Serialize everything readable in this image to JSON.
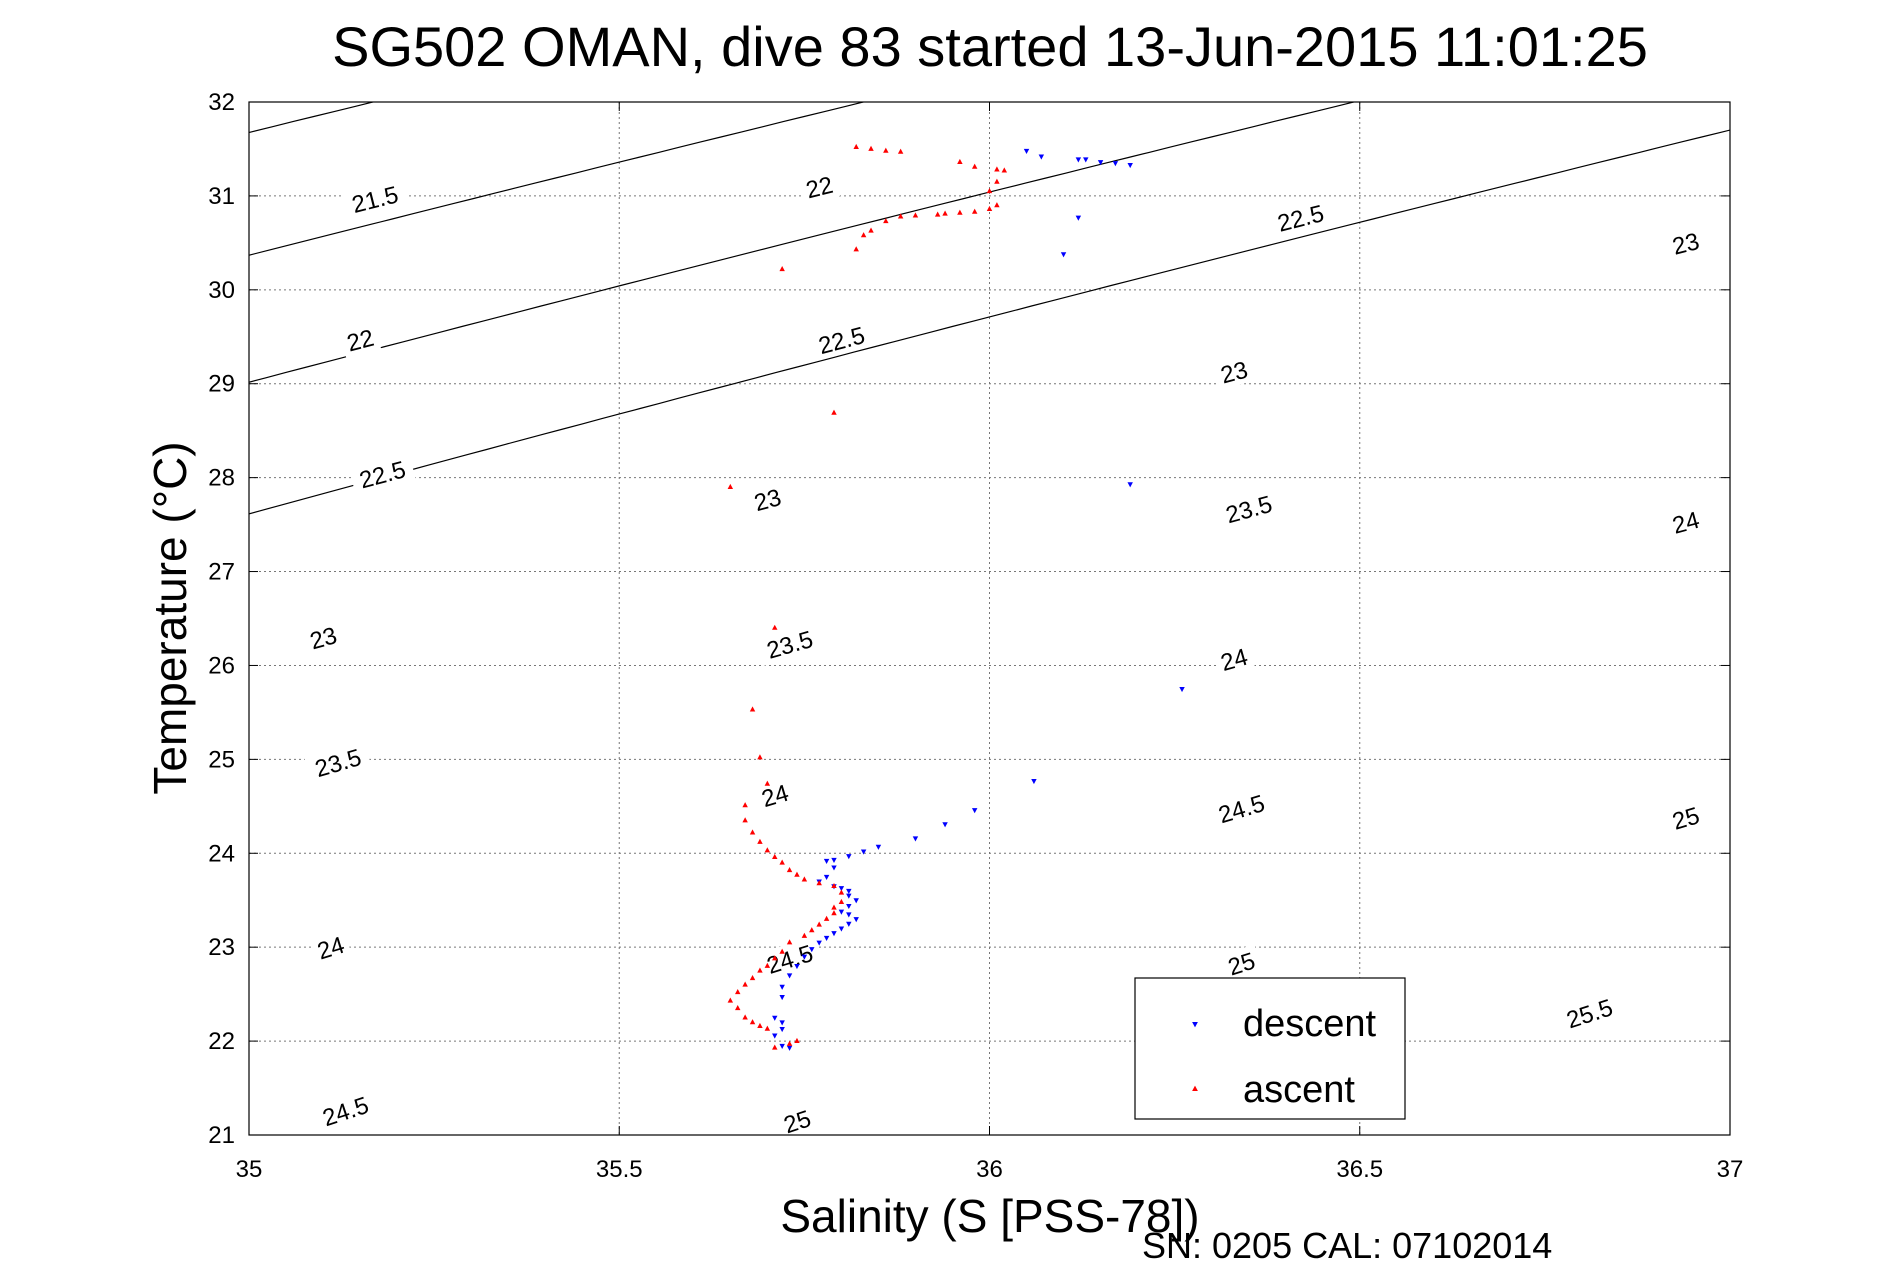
{
  "chart_data": {
    "type": "scatter",
    "title": "SG502 OMAN, dive 83 started 13-Jun-2015 11:01:25",
    "xlabel": "Salinity (S [PSS-78])",
    "ylabel": "Temperature (°C)",
    "footer": "SN: 0205  CAL: 07102014",
    "xlim": [
      35,
      37
    ],
    "ylim": [
      21,
      32
    ],
    "xticks": [
      35,
      35.5,
      36,
      36.5,
      37
    ],
    "xtick_labels": [
      "35",
      "35.5",
      "36",
      "36.5",
      "37"
    ],
    "yticks": [
      21,
      22,
      23,
      24,
      25,
      26,
      27,
      28,
      29,
      30,
      31,
      32
    ],
    "ytick_labels": [
      "21",
      "22",
      "23",
      "24",
      "25",
      "26",
      "27",
      "28",
      "29",
      "30",
      "31",
      "32"
    ],
    "grid": true,
    "legend_position": "bottom-right",
    "density_contours": {
      "levels": [
        21.5,
        22,
        22.5,
        23,
        23.5,
        24,
        24.5,
        25,
        25.5
      ],
      "labels": [
        {
          "text": "21.5",
          "s": 35.17,
          "t": 30.97
        },
        {
          "text": "22",
          "s": 35.77,
          "t": 31.1
        },
        {
          "text": "22.5",
          "s": 36.42,
          "t": 30.77
        },
        {
          "text": "23",
          "s": 36.94,
          "t": 30.5
        },
        {
          "text": "22",
          "s": 35.15,
          "t": 29.47
        },
        {
          "text": "22.5",
          "s": 35.8,
          "t": 29.47
        },
        {
          "text": "23",
          "s": 36.33,
          "t": 29.13
        },
        {
          "text": "22.5",
          "s": 35.18,
          "t": 28.04
        },
        {
          "text": "23",
          "s": 35.7,
          "t": 27.77
        },
        {
          "text": "23.5",
          "s": 36.35,
          "t": 27.67
        },
        {
          "text": "24",
          "s": 36.94,
          "t": 27.53
        },
        {
          "text": "23",
          "s": 35.1,
          "t": 26.3
        },
        {
          "text": "23.5",
          "s": 35.73,
          "t": 26.23
        },
        {
          "text": "24",
          "s": 36.33,
          "t": 26.07
        },
        {
          "text": "23.5",
          "s": 35.12,
          "t": 24.97
        },
        {
          "text": "24",
          "s": 35.71,
          "t": 24.62
        },
        {
          "text": "24.5",
          "s": 36.34,
          "t": 24.48
        },
        {
          "text": "25",
          "s": 36.94,
          "t": 24.38
        },
        {
          "text": "24",
          "s": 35.11,
          "t": 23.0
        },
        {
          "text": "24.5",
          "s": 35.73,
          "t": 22.88
        },
        {
          "text": "25",
          "s": 36.34,
          "t": 22.83
        },
        {
          "text": "25.5",
          "s": 36.81,
          "t": 22.3
        },
        {
          "text": "24.5",
          "s": 35.13,
          "t": 21.26
        },
        {
          "text": "25",
          "s": 35.74,
          "t": 21.15
        }
      ]
    },
    "series": [
      {
        "name": "descent",
        "color": "#0000ff",
        "marker": "triangle-down",
        "points": [
          [
            36.05,
            31.48
          ],
          [
            36.07,
            31.42
          ],
          [
            36.12,
            31.39
          ],
          [
            36.13,
            31.39
          ],
          [
            36.15,
            31.36
          ],
          [
            36.17,
            31.35
          ],
          [
            36.19,
            31.33
          ],
          [
            36.12,
            30.77
          ],
          [
            36.1,
            30.38
          ],
          [
            36.19,
            27.93
          ],
          [
            36.26,
            25.75
          ],
          [
            36.06,
            24.77
          ],
          [
            35.98,
            24.46
          ],
          [
            35.94,
            24.31
          ],
          [
            35.9,
            24.16
          ],
          [
            35.85,
            24.07
          ],
          [
            35.83,
            24.02
          ],
          [
            35.81,
            23.97
          ],
          [
            35.79,
            23.93
          ],
          [
            35.78,
            23.92
          ],
          [
            35.79,
            23.85
          ],
          [
            35.78,
            23.75
          ],
          [
            35.77,
            23.7
          ],
          [
            35.79,
            23.65
          ],
          [
            35.8,
            23.63
          ],
          [
            35.81,
            23.6
          ],
          [
            35.81,
            23.55
          ],
          [
            35.82,
            23.5
          ],
          [
            35.81,
            23.44
          ],
          [
            35.8,
            23.38
          ],
          [
            35.81,
            23.35
          ],
          [
            35.82,
            23.3
          ],
          [
            35.81,
            23.25
          ],
          [
            35.8,
            23.2
          ],
          [
            35.79,
            23.15
          ],
          [
            35.78,
            23.1
          ],
          [
            35.77,
            23.05
          ],
          [
            35.76,
            22.98
          ],
          [
            35.75,
            22.9
          ],
          [
            35.74,
            22.8
          ],
          [
            35.73,
            22.7
          ],
          [
            35.72,
            22.58
          ],
          [
            35.72,
            22.47
          ],
          [
            35.71,
            22.25
          ],
          [
            35.72,
            22.2
          ],
          [
            35.72,
            22.13
          ],
          [
            35.71,
            22.06
          ],
          [
            35.72,
            21.95
          ],
          [
            35.73,
            21.93
          ]
        ]
      },
      {
        "name": "ascent",
        "color": "#ff0000",
        "marker": "triangle-up",
        "points": [
          [
            35.84,
            31.5
          ],
          [
            35.86,
            31.48
          ],
          [
            35.88,
            31.47
          ],
          [
            35.82,
            31.52
          ],
          [
            35.96,
            31.36
          ],
          [
            35.98,
            31.31
          ],
          [
            36.01,
            31.28
          ],
          [
            36.02,
            31.27
          ],
          [
            36.01,
            31.15
          ],
          [
            36.0,
            31.05
          ],
          [
            36.01,
            30.9
          ],
          [
            36.0,
            30.86
          ],
          [
            35.98,
            30.83
          ],
          [
            35.96,
            30.82
          ],
          [
            35.94,
            30.81
          ],
          [
            35.93,
            30.8
          ],
          [
            35.9,
            30.79
          ],
          [
            35.88,
            30.78
          ],
          [
            35.86,
            30.73
          ],
          [
            35.84,
            30.63
          ],
          [
            35.83,
            30.58
          ],
          [
            35.82,
            30.43
          ],
          [
            35.72,
            30.22
          ],
          [
            35.79,
            28.69
          ],
          [
            35.65,
            27.9
          ],
          [
            35.71,
            26.4
          ],
          [
            35.68,
            25.53
          ],
          [
            35.69,
            25.02
          ],
          [
            35.7,
            24.74
          ],
          [
            35.67,
            24.51
          ],
          [
            35.67,
            24.35
          ],
          [
            35.68,
            24.22
          ],
          [
            35.69,
            24.12
          ],
          [
            35.7,
            24.03
          ],
          [
            35.71,
            23.96
          ],
          [
            35.72,
            23.9
          ],
          [
            35.73,
            23.82
          ],
          [
            35.74,
            23.77
          ],
          [
            35.75,
            23.72
          ],
          [
            35.77,
            23.68
          ],
          [
            35.79,
            23.65
          ],
          [
            35.8,
            23.58
          ],
          [
            35.8,
            23.48
          ],
          [
            35.79,
            23.42
          ],
          [
            35.79,
            23.36
          ],
          [
            35.78,
            23.3
          ],
          [
            35.77,
            23.24
          ],
          [
            35.76,
            23.18
          ],
          [
            35.75,
            23.12
          ],
          [
            35.73,
            23.05
          ],
          [
            35.72,
            22.95
          ],
          [
            35.71,
            22.88
          ],
          [
            35.7,
            22.8
          ],
          [
            35.69,
            22.75
          ],
          [
            35.68,
            22.67
          ],
          [
            35.67,
            22.6
          ],
          [
            35.66,
            22.52
          ],
          [
            35.65,
            22.43
          ],
          [
            35.66,
            22.35
          ],
          [
            35.67,
            22.25
          ],
          [
            35.68,
            22.2
          ],
          [
            35.69,
            22.16
          ],
          [
            35.7,
            22.13
          ],
          [
            35.73,
            21.97
          ],
          [
            35.74,
            22.0
          ],
          [
            35.71,
            21.93
          ]
        ]
      }
    ]
  }
}
